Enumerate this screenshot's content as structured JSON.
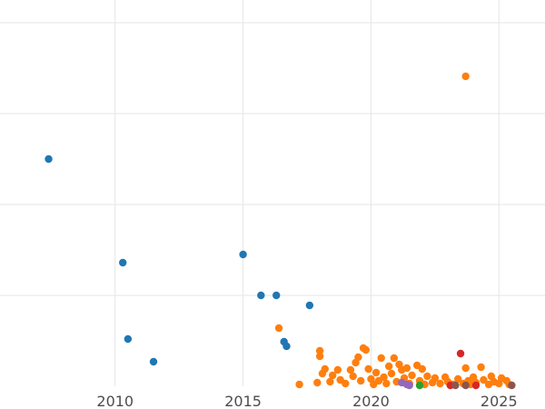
{
  "chart_data": {
    "type": "scatter",
    "xlim": [
      2005.5,
      2026.8
    ],
    "ylim": [
      0,
      42.5
    ],
    "x_ticks": [
      2010,
      2015,
      2020,
      2025
    ],
    "y_gridlines": [
      10,
      20,
      30,
      40
    ],
    "grid": true,
    "series": [
      {
        "color": "#1f77b4",
        "points": [
          [
            2007.4,
            25.0
          ],
          [
            2010.3,
            13.6
          ],
          [
            2010.5,
            5.2
          ],
          [
            2011.5,
            2.7
          ],
          [
            2015.0,
            14.5
          ],
          [
            2015.7,
            10.0
          ],
          [
            2016.3,
            10.0
          ],
          [
            2016.6,
            4.9
          ],
          [
            2016.7,
            4.4
          ],
          [
            2017.6,
            8.9
          ]
        ]
      },
      {
        "color": "#ff7f0e",
        "points": [
          [
            2023.7,
            34.1
          ],
          [
            2016.4,
            6.4
          ],
          [
            2017.2,
            0.2
          ],
          [
            2017.9,
            0.4
          ],
          [
            2018.0,
            3.9
          ],
          [
            2018.0,
            3.3
          ],
          [
            2018.1,
            1.4
          ],
          [
            2018.2,
            1.9
          ],
          [
            2018.4,
            0.5
          ],
          [
            2018.5,
            1.2
          ],
          [
            2018.7,
            1.8
          ],
          [
            2018.8,
            0.7
          ],
          [
            2019.0,
            0.3
          ],
          [
            2019.2,
            1.8
          ],
          [
            2019.3,
            1.1
          ],
          [
            2019.4,
            2.6
          ],
          [
            2019.5,
            3.2
          ],
          [
            2019.6,
            0.6
          ],
          [
            2019.7,
            4.2
          ],
          [
            2019.8,
            4.0
          ],
          [
            2019.9,
            1.9
          ],
          [
            2020.0,
            0.8
          ],
          [
            2020.1,
            0.2
          ],
          [
            2020.2,
            1.5
          ],
          [
            2020.3,
            0.6
          ],
          [
            2020.4,
            3.1
          ],
          [
            2020.5,
            1.0
          ],
          [
            2020.6,
            0.3
          ],
          [
            2020.7,
            2.2
          ],
          [
            2020.8,
            1.4
          ],
          [
            2020.9,
            3.1
          ],
          [
            2021.0,
            0.5
          ],
          [
            2021.1,
            2.4
          ],
          [
            2021.2,
            1.8
          ],
          [
            2021.3,
            0.9
          ],
          [
            2021.4,
            2.0
          ],
          [
            2021.5,
            0.3
          ],
          [
            2021.6,
            1.2
          ],
          [
            2021.8,
            2.3
          ],
          [
            2021.9,
            0.6
          ],
          [
            2022.0,
            1.9
          ],
          [
            2022.1,
            0.2
          ],
          [
            2022.2,
            1.1
          ],
          [
            2022.4,
            0.4
          ],
          [
            2022.5,
            0.9
          ],
          [
            2022.7,
            0.3
          ],
          [
            2022.9,
            1.0
          ],
          [
            2023.0,
            0.5
          ],
          [
            2023.2,
            0.2
          ],
          [
            2023.4,
            0.8
          ],
          [
            2023.6,
            0.3
          ],
          [
            2023.7,
            2.0
          ],
          [
            2023.8,
            0.6
          ],
          [
            2023.9,
            0.2
          ],
          [
            2024.0,
            1.0
          ],
          [
            2024.1,
            0.4
          ],
          [
            2024.3,
            2.1
          ],
          [
            2024.4,
            0.7
          ],
          [
            2024.6,
            0.2
          ],
          [
            2024.7,
            1.1
          ],
          [
            2024.8,
            0.5
          ],
          [
            2025.0,
            0.3
          ],
          [
            2025.1,
            0.9
          ],
          [
            2025.3,
            0.6
          ],
          [
            2025.4,
            0.2
          ]
        ]
      },
      {
        "color": "#d62728",
        "points": [
          [
            2023.5,
            3.6
          ],
          [
            2023.1,
            0.1
          ],
          [
            2024.1,
            0.1
          ]
        ]
      },
      {
        "color": "#9467bd",
        "points": [
          [
            2021.2,
            0.4
          ],
          [
            2021.4,
            0.2
          ],
          [
            2021.5,
            0.1
          ]
        ]
      },
      {
        "color": "#2ca02c",
        "points": [
          [
            2021.9,
            0.1
          ]
        ]
      },
      {
        "color": "#8c564b",
        "points": [
          [
            2023.3,
            0.1
          ],
          [
            2023.7,
            0.1
          ],
          [
            2025.5,
            0.1
          ]
        ]
      }
    ]
  }
}
